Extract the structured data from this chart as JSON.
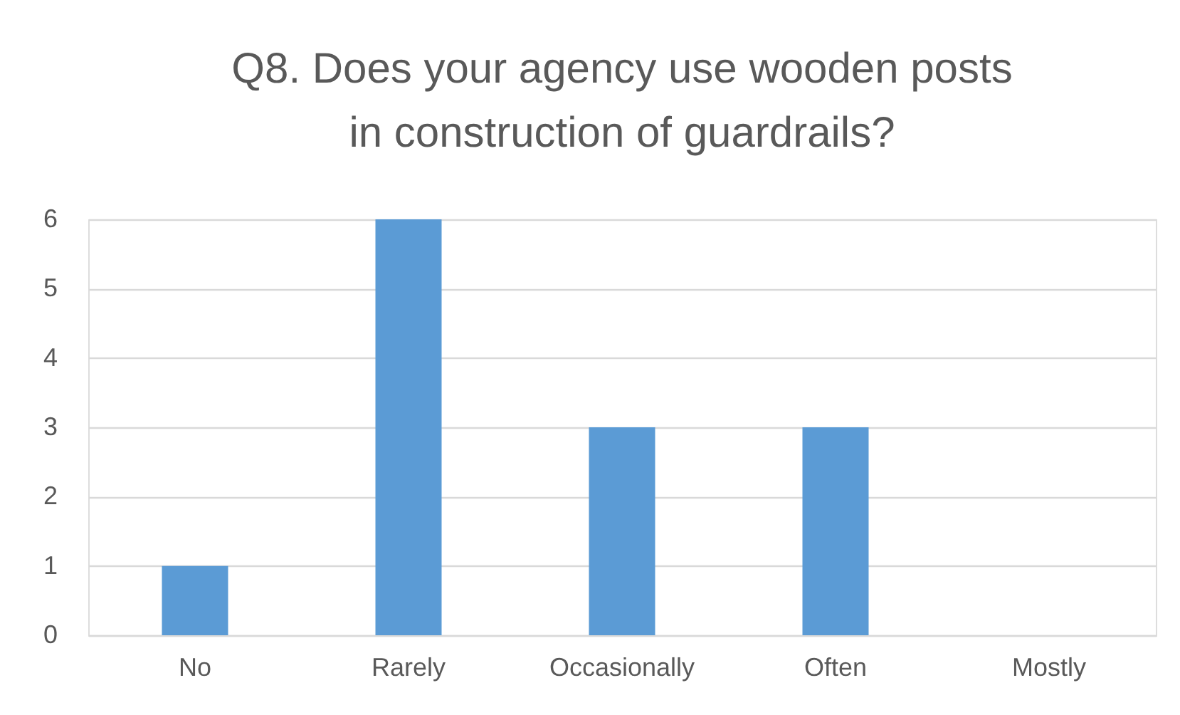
{
  "chart_data": {
    "type": "bar",
    "title": "Q8.  Does your agency use wooden posts\nin construction of guardrails?",
    "categories": [
      "No",
      "Rarely",
      "Occasionally",
      "Often",
      "Mostly"
    ],
    "values": [
      1,
      6,
      3,
      3,
      0
    ],
    "color": "#5b9bd5",
    "ylim": [
      0,
      6
    ],
    "yticks": [
      0,
      1,
      2,
      3,
      4,
      5,
      6
    ],
    "grid": "y"
  }
}
